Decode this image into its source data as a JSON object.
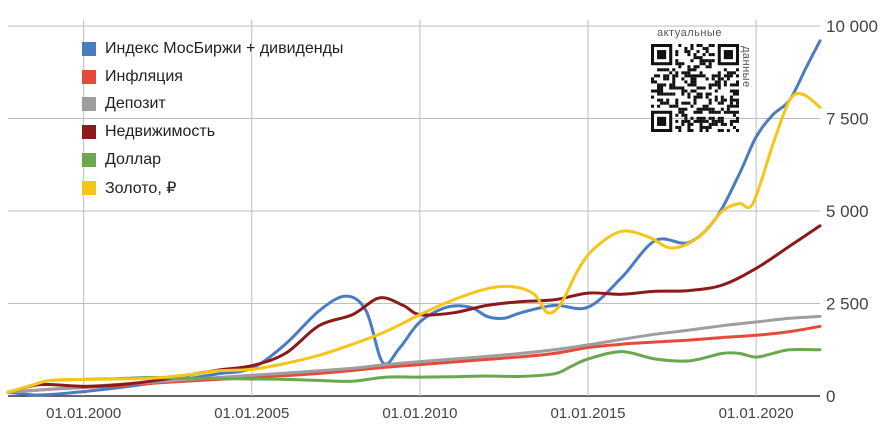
{
  "chart_data": {
    "type": "line",
    "ylim": [
      0,
      10000
    ],
    "yticks": [
      "0",
      "2 500",
      "5 000",
      "7 500",
      "10 000"
    ],
    "ytick_values": [
      0,
      2500,
      5000,
      7500,
      10000
    ],
    "xlim": [
      1997.75,
      2021.9
    ],
    "xtick_values": [
      2000,
      2005,
      2010,
      2015,
      2020
    ],
    "xticks": [
      "01.01.2000",
      "01.01.2005",
      "01.01.2010",
      "01.01.2015",
      "01.01.2020"
    ],
    "grid": true,
    "legend_position": "top-left",
    "series": [
      {
        "name": "Индекс МосБиржи + дивиденды",
        "color": "#4a7cc4",
        "x": [
          1997.75,
          1998.5,
          1999.0,
          2000.0,
          2001.0,
          2002.0,
          2003.0,
          2004.0,
          2005.0,
          2006.0,
          2007.0,
          2007.8,
          2008.4,
          2008.9,
          2009.4,
          2010.0,
          2010.8,
          2011.5,
          2012.0,
          2012.5,
          2013.0,
          2014.0,
          2015.0,
          2016.0,
          2017.0,
          2018.0,
          2018.8,
          2019.5,
          2020.0,
          2020.5,
          2021.0,
          2021.5,
          2021.9
        ],
        "y": [
          100,
          30,
          40,
          120,
          220,
          340,
          460,
          600,
          750,
          1400,
          2300,
          2700,
          2300,
          900,
          1300,
          2000,
          2400,
          2400,
          2150,
          2100,
          2250,
          2450,
          2400,
          3200,
          4200,
          4150,
          4800,
          6000,
          7000,
          7600,
          8000,
          8900,
          9600
        ]
      },
      {
        "name": "Инфляция",
        "color": "#e64a3a",
        "x": [
          1997.75,
          1999.0,
          2000.0,
          2001.0,
          2002.0,
          2003.0,
          2004.0,
          2005.0,
          2006.0,
          2007.0,
          2008.0,
          2009.0,
          2010.0,
          2011.0,
          2012.0,
          2013.0,
          2014.0,
          2015.0,
          2016.0,
          2017.0,
          2018.0,
          2019.0,
          2020.0,
          2021.0,
          2021.9
        ],
        "y": [
          100,
          180,
          230,
          280,
          340,
          400,
          450,
          500,
          550,
          610,
          690,
          780,
          850,
          920,
          990,
          1060,
          1150,
          1310,
          1400,
          1460,
          1510,
          1580,
          1640,
          1740,
          1880
        ]
      },
      {
        "name": "Депозит",
        "color": "#9e9e9e",
        "x": [
          1997.75,
          1999.0,
          2000.0,
          2001.0,
          2002.0,
          2003.0,
          2004.0,
          2005.0,
          2006.0,
          2007.0,
          2008.0,
          2009.0,
          2010.0,
          2011.0,
          2012.0,
          2013.0,
          2014.0,
          2015.0,
          2016.0,
          2017.0,
          2018.0,
          2019.0,
          2020.0,
          2021.0,
          2021.9
        ],
        "y": [
          100,
          180,
          250,
          310,
          370,
          440,
          500,
          560,
          620,
          680,
          750,
          850,
          930,
          1000,
          1070,
          1150,
          1250,
          1380,
          1530,
          1670,
          1780,
          1900,
          2000,
          2100,
          2150
        ]
      },
      {
        "name": "Недвижимость",
        "color": "#8b1a1a",
        "x": [
          1997.75,
          1998.5,
          1999.0,
          2000.0,
          2001.0,
          2002.0,
          2003.0,
          2004.0,
          2005.0,
          2006.0,
          2007.0,
          2008.0,
          2008.8,
          2009.5,
          2010.0,
          2011.0,
          2012.0,
          2013.0,
          2014.0,
          2015.0,
          2016.0,
          2017.0,
          2018.0,
          2019.0,
          2020.0,
          2021.0,
          2021.9
        ],
        "y": [
          100,
          280,
          310,
          260,
          300,
          400,
          550,
          700,
          820,
          1150,
          1900,
          2200,
          2650,
          2450,
          2200,
          2250,
          2450,
          2550,
          2600,
          2780,
          2750,
          2830,
          2850,
          3000,
          3450,
          4050,
          4600
        ]
      },
      {
        "name": "Доллар",
        "color": "#6aa84f",
        "x": [
          1997.75,
          1998.5,
          1999.0,
          2000.0,
          2001.0,
          2002.0,
          2003.0,
          2004.0,
          2005.0,
          2006.0,
          2007.0,
          2008.0,
          2009.0,
          2010.0,
          2011.0,
          2012.0,
          2013.0,
          2014.0,
          2014.5,
          2015.0,
          2016.0,
          2017.0,
          2018.0,
          2019.0,
          2019.5,
          2020.0,
          2020.5,
          2021.0,
          2021.9
        ],
        "y": [
          100,
          300,
          420,
          450,
          470,
          500,
          490,
          470,
          460,
          450,
          420,
          400,
          510,
          510,
          520,
          540,
          530,
          600,
          800,
          1000,
          1200,
          1000,
          950,
          1150,
          1150,
          1050,
          1150,
          1250,
          1250
        ]
      },
      {
        "name": "Золото, ₽",
        "color": "#f5c518",
        "x": [
          1997.75,
          1998.5,
          1999.0,
          2000.0,
          2001.0,
          2002.0,
          2003.0,
          2004.0,
          2005.0,
          2006.0,
          2007.0,
          2008.0,
          2009.0,
          2010.0,
          2011.0,
          2012.0,
          2012.8,
          2013.4,
          2013.8,
          2014.2,
          2014.7,
          2015.2,
          2016.0,
          2016.8,
          2017.5,
          2018.3,
          2019.0,
          2019.5,
          2019.9,
          2020.5,
          2021.0,
          2021.4,
          2021.9
        ],
        "y": [
          100,
          300,
          420,
          450,
          460,
          480,
          560,
          680,
          720,
          880,
          1100,
          1400,
          1750,
          2200,
          2600,
          2900,
          2950,
          2750,
          2250,
          2500,
          3400,
          4000,
          4450,
          4300,
          4000,
          4300,
          5000,
          5200,
          5200,
          6800,
          8000,
          8150,
          7800
        ]
      }
    ]
  },
  "watermark": {
    "caption_top": "актуальные",
    "caption_side": "данные"
  }
}
